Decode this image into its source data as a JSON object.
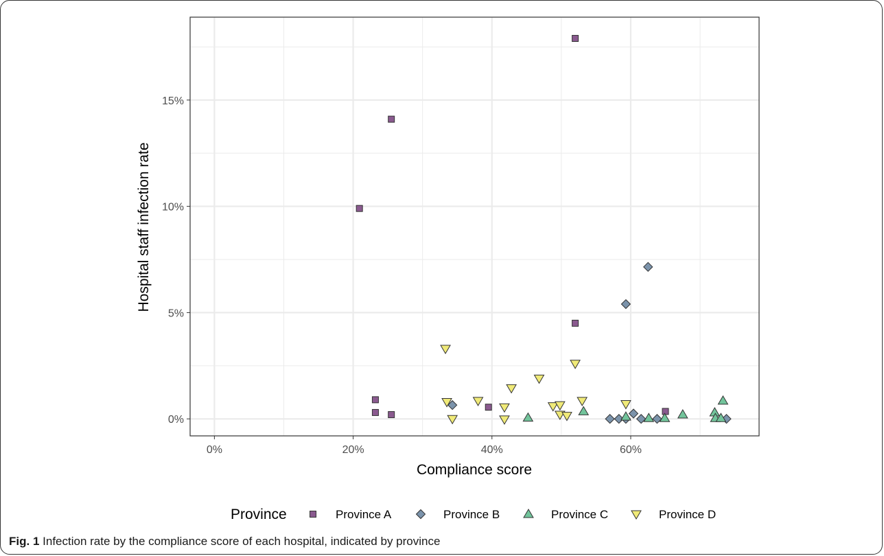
{
  "caption": {
    "label": "Fig. 1",
    "text": "Infection rate by the compliance score of each hospital, indicated by province"
  },
  "colors": {
    "Province A": "#8a5a8f",
    "Province B": "#7b93ab",
    "Province C": "#72c49b",
    "Province D": "#f0ea78",
    "stroke": "#333333",
    "grid": "#ebebeb",
    "panel_border": "#333333"
  },
  "chart_data": {
    "type": "scatter",
    "xlabel": "Compliance score",
    "ylabel": "Hospital staff infection rate",
    "xlim": [
      -0.035,
      0.785
    ],
    "ylim": [
      -0.008,
      0.189
    ],
    "x_ticks": [
      {
        "value": 0.0,
        "label": "0%"
      },
      {
        "value": 0.2,
        "label": "20%"
      },
      {
        "value": 0.4,
        "label": "40%"
      },
      {
        "value": 0.6,
        "label": "60%"
      }
    ],
    "y_ticks": [
      {
        "value": 0.0,
        "label": "0%"
      },
      {
        "value": 0.05,
        "label": "5%"
      },
      {
        "value": 0.1,
        "label": "10%"
      },
      {
        "value": 0.15,
        "label": "15%"
      }
    ],
    "x_minor": [
      0.1,
      0.3,
      0.5,
      0.7
    ],
    "y_minor": [
      0.025,
      0.075,
      0.125,
      0.175
    ],
    "grid": true,
    "legend": {
      "title": "Province",
      "position": "bottom",
      "entries": [
        "Province A",
        "Province B",
        "Province C",
        "Province D"
      ]
    },
    "series": [
      {
        "name": "Province A",
        "marker": "square",
        "points": [
          [
            0.209,
            0.099
          ],
          [
            0.232,
            0.009
          ],
          [
            0.232,
            0.003
          ],
          [
            0.255,
            0.141
          ],
          [
            0.255,
            0.002
          ],
          [
            0.395,
            0.0055
          ],
          [
            0.52,
            0.179
          ],
          [
            0.52,
            0.045
          ],
          [
            0.65,
            0.0035
          ]
        ]
      },
      {
        "name": "Province B",
        "marker": "diamond",
        "points": [
          [
            0.343,
            0.0065
          ],
          [
            0.57,
            0.0
          ],
          [
            0.583,
            0.0
          ],
          [
            0.593,
            0.0
          ],
          [
            0.593,
            0.054
          ],
          [
            0.604,
            0.0025
          ],
          [
            0.615,
            0.0
          ],
          [
            0.625,
            0.0715
          ],
          [
            0.638,
            0.0
          ],
          [
            0.738,
            0.0
          ]
        ]
      },
      {
        "name": "Province C",
        "marker": "triangle-up",
        "points": [
          [
            0.452,
            0.0005
          ],
          [
            0.532,
            0.0035
          ],
          [
            0.593,
            0.001
          ],
          [
            0.626,
            0.0003
          ],
          [
            0.649,
            0.0003
          ],
          [
            0.675,
            0.002
          ],
          [
            0.721,
            0.003
          ],
          [
            0.722,
            0.0003
          ],
          [
            0.73,
            0.0003
          ],
          [
            0.733,
            0.0085
          ]
        ]
      },
      {
        "name": "Province D",
        "marker": "triangle-down",
        "points": [
          [
            0.333,
            0.033
          ],
          [
            0.335,
            0.008
          ],
          [
            0.343,
            0.0
          ],
          [
            0.38,
            0.0085
          ],
          [
            0.418,
            0.0055
          ],
          [
            0.418,
            -0.0002
          ],
          [
            0.428,
            0.0145
          ],
          [
            0.468,
            0.019
          ],
          [
            0.488,
            0.006
          ],
          [
            0.498,
            0.0065
          ],
          [
            0.498,
            0.002
          ],
          [
            0.508,
            0.0015
          ],
          [
            0.52,
            0.026
          ],
          [
            0.53,
            0.0085
          ],
          [
            0.593,
            0.007
          ]
        ]
      }
    ]
  }
}
